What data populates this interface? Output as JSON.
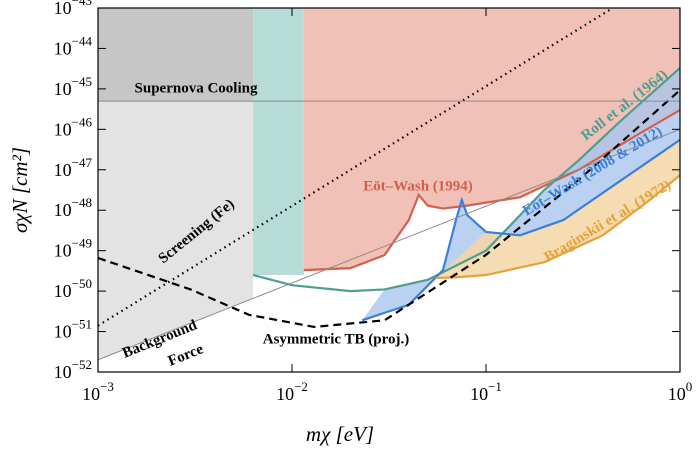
{
  "chart_data": {
    "type": "line",
    "log_x": true,
    "log_y": true,
    "xlabel": "mχ [eV]",
    "ylabel": "σχN [cm²]",
    "xlim": [
      0.001,
      1
    ],
    "ylim": [
      1e-52,
      1e-43
    ],
    "xticks": [
      {
        "value": 0.001,
        "label": "10",
        "exponent": "−3"
      },
      {
        "value": 0.01,
        "label": "10",
        "exponent": "−2"
      },
      {
        "value": 0.1,
        "label": "10",
        "exponent": "−1"
      },
      {
        "value": 1,
        "label": "10",
        "exponent": "0"
      }
    ],
    "yticks": [
      {
        "value": 1e-52,
        "label": "10",
        "exponent": "−52"
      },
      {
        "value": 1e-51,
        "label": "10",
        "exponent": "−51"
      },
      {
        "value": 1e-50,
        "label": "10",
        "exponent": "−50"
      },
      {
        "value": 1e-49,
        "label": "10",
        "exponent": "−49"
      },
      {
        "value": 1e-48,
        "label": "10",
        "exponent": "−48"
      },
      {
        "value": 1e-47,
        "label": "10",
        "exponent": "−47"
      },
      {
        "value": 1e-46,
        "label": "10",
        "exponent": "−46"
      },
      {
        "value": 1e-45,
        "label": "10",
        "exponent": "−45"
      },
      {
        "value": 1e-44,
        "label": "10",
        "exponent": "−44"
      },
      {
        "value": 1e-43,
        "label": "10",
        "exponent": "−43"
      }
    ],
    "series": [
      {
        "name": "Eöt–Wash (1994)",
        "color": "#d4604c",
        "fill": "#f1c0b7",
        "style": "solid",
        "x": [
          0.0115,
          0.02,
          0.03,
          0.04,
          0.045,
          0.05,
          0.06,
          0.08,
          0.15,
          0.3,
          0.6,
          1
        ],
        "values": [
          3.3e-50,
          3.7e-50,
          7.8e-50,
          5.7e-49,
          2.4e-48,
          1.3e-48,
          1.1e-48,
          1.3e-48,
          2.1e-48,
          1e-47,
          7.2e-47,
          3e-46
        ]
      },
      {
        "name": "Roll et al. (1964)",
        "color": "#4e9e8f",
        "fill": "#b7dbd5",
        "style": "solid",
        "x": [
          0.0063,
          0.01,
          0.02,
          0.03,
          0.05,
          0.1,
          0.2,
          0.3,
          0.5,
          1
        ],
        "values": [
          2.5e-50,
          1.4e-50,
          1e-50,
          1.1e-50,
          1.9e-50,
          1e-49,
          3.2e-48,
          1.7e-47,
          1.7e-46,
          3.3e-45
        ]
      },
      {
        "name": "Eöt–Wash (2008 & 2012)",
        "color": "#3c7fd9",
        "fill": "#a9c5ee",
        "style": "solid",
        "x": [
          0.023,
          0.04,
          0.06,
          0.07,
          0.075,
          0.08,
          0.1,
          0.15,
          0.25,
          0.5,
          1
        ],
        "values": [
          1.9e-51,
          4.6e-51,
          3.3e-50,
          5.7e-49,
          1.8e-48,
          7.6e-49,
          2.9e-49,
          2.4e-49,
          5.7e-49,
          5.6e-48,
          5.5e-47
        ]
      },
      {
        "name": "Braginskii et al. (1972)",
        "color": "#e7a13a",
        "fill": "#f4d6a4",
        "style": "solid",
        "x": [
          0.055,
          0.07,
          0.1,
          0.2,
          0.4,
          0.7,
          1
        ],
        "values": [
          2.1e-50,
          2.2e-50,
          2.5e-50,
          5.2e-50,
          2.4e-49,
          1.8e-48,
          7.4e-48
        ]
      },
      {
        "name": "Asymmetric TB (proj.)",
        "color": "#000000",
        "style": "dashed",
        "x": [
          0.001,
          0.003,
          0.006,
          0.013,
          0.03,
          0.1,
          0.3,
          1
        ],
        "values": [
          6.6e-50,
          1.1e-50,
          2.6e-51,
          1.3e-51,
          1.9e-51,
          7.9e-50,
          5.6e-48,
          9.3e-46
        ]
      },
      {
        "name": "Screening (Fe)",
        "color": "#000000",
        "style": "dotted",
        "x": [
          0.001,
          0.45
        ],
        "values": [
          1.4e-51,
          1e-43
        ]
      },
      {
        "color": "#8c8c8c",
        "fill": "#e3e3e3",
        "style": "solid",
        "x": [
          0.001,
          1
        ],
        "values": [
          2e-52,
          1e-46
        ]
      },
      {
        "name": "Supernova Cooling",
        "color": "#8c8c8c",
        "fill": "#c6c6c6",
        "style": "solid",
        "x": [
          0.001,
          1
        ],
        "values": [
          5e-46,
          5e-46
        ]
      }
    ],
    "annotations": [
      "Background",
      "Force"
    ]
  }
}
